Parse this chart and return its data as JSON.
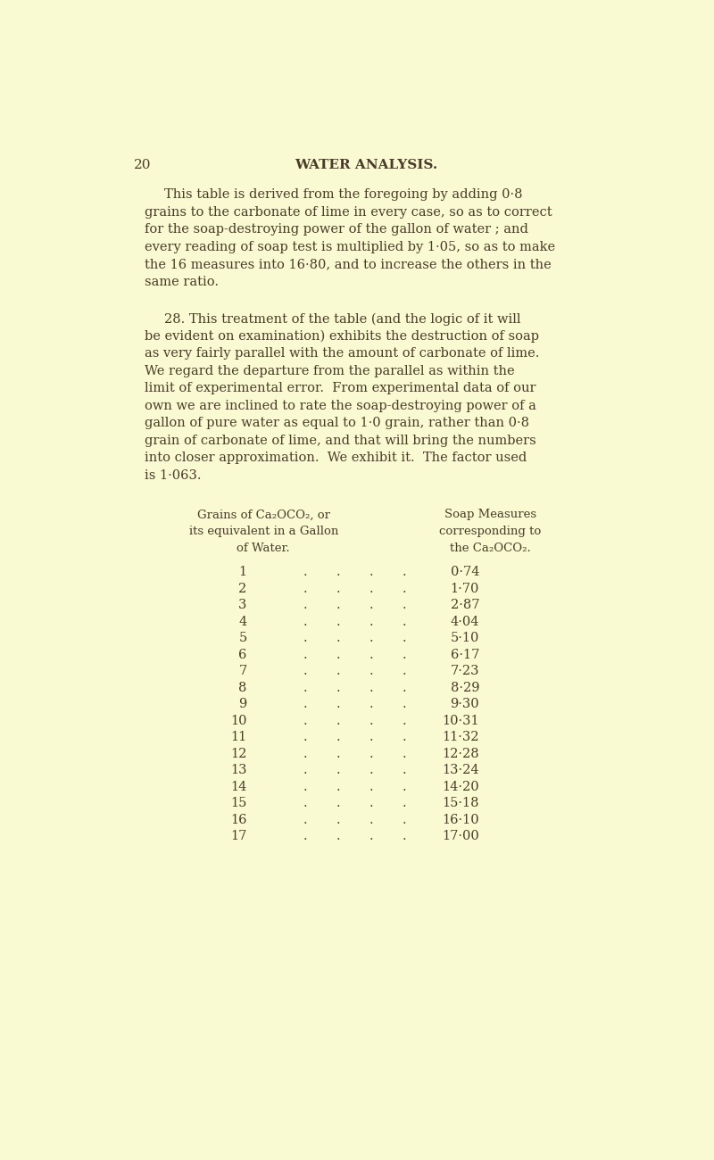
{
  "page_number": "20",
  "page_header": "WATER ANALYSIS.",
  "background_color": "#FAFAD2",
  "text_color": "#4a3c28",
  "col1_header_line1": "Grains of Ca₂OCO₂, or",
  "col1_header_line2": "its equivalent in a Gallon",
  "col1_header_line3": "of Water.",
  "col2_header_line1": "Soap Measures",
  "col2_header_line2": "corresponding to",
  "col2_header_line3": "the Ca₂OCO₂.",
  "para1_lines": [
    "This table is derived from the foregoing by adding 0·8",
    "grains to the carbonate of lime in every case, so as to correct",
    "for the soap-destroying power of the gallon of water ; and",
    "every reading of soap test is multiplied by 1·05, so as to make",
    "the 16 measures into 16·80, and to increase the others in the",
    "same ratio."
  ],
  "para2_lines": [
    "28. This treatment of the table (and the logic of it will",
    "be evident on examination) exhibits the destruction of soap",
    "as very fairly parallel with the amount of carbonate of lime.",
    "We regard the departure from the parallel as within the",
    "limit of experimental error.  From experimental data of our",
    "own we are inclined to rate the soap-destroying power of a",
    "gallon of pure water as equal to 1·0 grain, rather than 0·8",
    "grain of carbonate of lime, and that will bring the numbers",
    "into closer approximation.  We exhibit it.  The factor used",
    "is 1·063."
  ],
  "grains": [
    1,
    2,
    3,
    4,
    5,
    6,
    7,
    8,
    9,
    10,
    11,
    12,
    13,
    14,
    15,
    16,
    17
  ],
  "soap_measures": [
    "0·74",
    "1·70",
    "2·87",
    "4·04",
    "5·10",
    "6·17",
    "7·23",
    "8·29",
    "9·30",
    "10·31",
    "11·32",
    "12·28",
    "13·24",
    "14·20",
    "15·18",
    "16·10",
    "17·00"
  ]
}
